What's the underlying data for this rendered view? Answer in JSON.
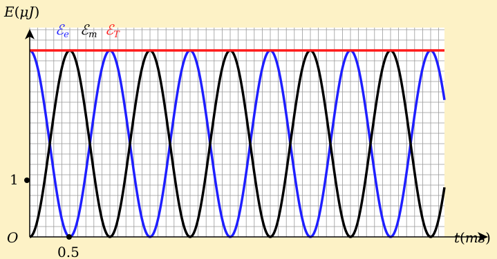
{
  "chart_data": {
    "type": "line",
    "ylabel": "E(μJ)",
    "xlabel": "t(ms)",
    "origin_label": "O",
    "annotations": [
      {
        "axis": "y",
        "value": 1,
        "label": "1"
      },
      {
        "axis": "x",
        "value": 0.5,
        "label": "0.5"
      }
    ],
    "xlim": [
      0,
      5.0
    ],
    "ylim": [
      0,
      4.8
    ],
    "grid": true,
    "grid_step": {
      "x": 0.1,
      "y": 0.2
    },
    "total_energy": 3.6,
    "period_ms": 1.0,
    "series": [
      {
        "name": "ℰe",
        "sub": "e",
        "base": "ℰ",
        "color": "#1f1fff",
        "formula": "3.6 * cos^2(pi * t / 0.5 ... )",
        "kind": "cos2"
      },
      {
        "name": "ℰm",
        "sub": "m",
        "base": "ℰ",
        "color": "#000000",
        "kind": "sin2"
      },
      {
        "name": "ℰT",
        "sub": "T",
        "base": "ℰ",
        "color": "#ff1a1a",
        "kind": "const"
      }
    ],
    "legend_position": "top-left"
  },
  "colors": {
    "background": "#fdf2c6",
    "plot_background": "#ffffff",
    "grid": "#999999"
  }
}
